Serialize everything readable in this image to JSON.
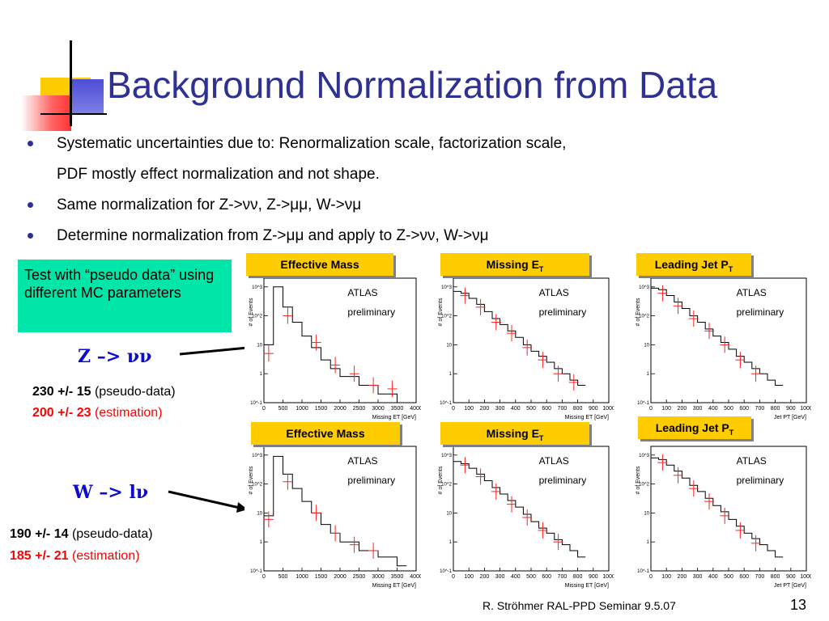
{
  "title": "Background Normalization from Data",
  "bullets": [
    {
      "line1": "Systematic uncertainties due to: Renormalization scale, factorization scale,",
      "line2": "PDF mostly effect normalization and not shape."
    },
    {
      "line1": "Same normalization for Z->νν, Z->μμ, W->νμ"
    },
    {
      "line1": "Determine normalization from Z->μμ and apply to Z->νν, W->νμ"
    }
  ],
  "callout": "Test with “pseudo data” using different MC parameters",
  "z_label": "Z –> νν",
  "w_label": "W –> lν",
  "z_results": {
    "pseudo_value": "230 +/- 15",
    "pseudo_text": " (pseudo-data)",
    "est_value": "200 +/- 23",
    "est_text": " (estimation)"
  },
  "w_results": {
    "pseudo_value": "190 +/- 14",
    "pseudo_text": " (pseudo-data)",
    "est_value": "185 +/- 21",
    "est_text": " (estimation)"
  },
  "plot_labels": {
    "mass": "Effective Mass",
    "met_main": "Missing E",
    "met_sub": "T",
    "jet_main": "Leading Jet P",
    "jet_sub": "T"
  },
  "footer": "R. Ströhmer   RAL-PPD Seminar 9.5.07",
  "page_number": "13",
  "colors": {
    "title": "#2e3192",
    "callout": "#00e6a8",
    "label_bg": "#ffcc00",
    "result_red": "#ff0000",
    "process_blue": "#0b0bd4"
  },
  "chart_data": [
    {
      "type": "line",
      "row": "Z->vv",
      "ylabel": "# of Events",
      "xlabel": "Missing ET [GeV]",
      "annotation": [
        "ATLAS",
        "preliminary"
      ],
      "log_y": true,
      "xlim": [
        0,
        4000
      ],
      "ylim": [
        0.1,
        2000
      ],
      "xticks": [
        "0",
        "500",
        "1000",
        "1500",
        "2000",
        "2500",
        "3000",
        "3500",
        "4000"
      ],
      "yticks": [
        "10^-1",
        "1",
        "10",
        "10^2",
        "10^3"
      ],
      "series": [
        {
          "x": [
            0,
            250,
            500,
            750,
            1000,
            1250,
            1500,
            1750,
            2000,
            2500,
            3000,
            3500
          ],
          "values": [
            10,
            1000,
            200,
            60,
            20,
            8,
            3,
            1.5,
            0.8,
            0.4,
            0.2,
            0.1
          ]
        },
        {
          "x": [
            125,
            625,
            1375,
            1875,
            2375,
            2875,
            3375
          ],
          "values": [
            5,
            100,
            12,
            2,
            1,
            0.4,
            0.3
          ]
        }
      ]
    },
    {
      "type": "line",
      "row": "Z->vv",
      "ylabel": "# of Events",
      "xlabel": "Missing ET [GeV]",
      "annotation": [
        "ATLAS",
        "preliminary"
      ],
      "log_y": true,
      "xlim": [
        0,
        1000
      ],
      "ylim": [
        0.1,
        2000
      ],
      "xticks": [
        "0",
        "100",
        "200",
        "300",
        "400",
        "500",
        "600",
        "700",
        "800",
        "900",
        "1000"
      ],
      "yticks": [
        "10^-1",
        "1",
        "10",
        "10^2",
        "10^3"
      ],
      "series": [
        {
          "x": [
            0,
            50,
            100,
            150,
            200,
            250,
            300,
            350,
            400,
            450,
            500,
            550,
            600,
            650,
            700,
            750,
            800
          ],
          "values": [
            700,
            600,
            400,
            250,
            140,
            80,
            50,
            30,
            18,
            10,
            6,
            4,
            2.5,
            1.5,
            1,
            0.6,
            0.4
          ]
        },
        {
          "x": [
            75,
            175,
            275,
            375,
            475,
            575,
            675,
            775
          ],
          "values": [
            500,
            200,
            60,
            25,
            8,
            3,
            1,
            0.5
          ]
        }
      ]
    },
    {
      "type": "line",
      "row": "Z->vv",
      "ylabel": "# of Events",
      "xlabel": "Jet PT [GeV]",
      "annotation": [
        "ATLAS",
        "preliminary"
      ],
      "log_y": true,
      "xlim": [
        0,
        1000
      ],
      "ylim": [
        0.1,
        2000
      ],
      "xticks": [
        "0",
        "100",
        "200",
        "300",
        "400",
        "500",
        "600",
        "700",
        "800",
        "900",
        "1000"
      ],
      "yticks": [
        "10^-1",
        "1",
        "10",
        "10^2",
        "10^3"
      ],
      "series": [
        {
          "x": [
            0,
            50,
            100,
            150,
            200,
            250,
            300,
            350,
            400,
            450,
            500,
            550,
            600,
            650,
            700,
            750,
            800
          ],
          "values": [
            900,
            800,
            500,
            300,
            180,
            100,
            60,
            35,
            20,
            12,
            7,
            4,
            2.5,
            1.5,
            1,
            0.6,
            0.4
          ]
        },
        {
          "x": [
            75,
            175,
            275,
            375,
            475,
            575,
            675
          ],
          "values": [
            600,
            220,
            80,
            30,
            10,
            3,
            1
          ]
        }
      ]
    },
    {
      "type": "line",
      "row": "W->lv",
      "ylabel": "# of Events",
      "xlabel": "Missing ET [GeV]",
      "annotation": [
        "ATLAS",
        "preliminary"
      ],
      "log_y": true,
      "xlim": [
        0,
        4000
      ],
      "ylim": [
        0.1,
        2000
      ],
      "xticks": [
        "0",
        "500",
        "1000",
        "1500",
        "2000",
        "2500",
        "3000",
        "3500",
        "4000"
      ],
      "yticks": [
        "10^-1",
        "1",
        "10",
        "10^2",
        "10^3"
      ],
      "series": [
        {
          "x": [
            0,
            250,
            500,
            750,
            1000,
            1250,
            1500,
            1750,
            2000,
            2500,
            3000,
            3500
          ],
          "values": [
            8,
            900,
            220,
            70,
            25,
            10,
            4,
            2,
            1,
            0.5,
            0.3,
            0.15
          ]
        },
        {
          "x": [
            125,
            625,
            1375,
            1875,
            2375,
            2875
          ],
          "values": [
            6,
            120,
            10,
            2,
            0.8,
            0.5
          ]
        }
      ]
    },
    {
      "type": "line",
      "row": "W->lv",
      "ylabel": "# of Events",
      "xlabel": "Missing ET [GeV]",
      "annotation": [
        "ATLAS",
        "preliminary"
      ],
      "log_y": true,
      "xlim": [
        0,
        1000
      ],
      "ylim": [
        0.1,
        2000
      ],
      "xticks": [
        "0",
        "100",
        "200",
        "300",
        "400",
        "500",
        "600",
        "700",
        "800",
        "900",
        "1000"
      ],
      "yticks": [
        "10^-1",
        "1",
        "10",
        "10^2",
        "10^3"
      ],
      "series": [
        {
          "x": [
            0,
            50,
            100,
            150,
            200,
            250,
            300,
            350,
            400,
            450,
            500,
            550,
            600,
            650,
            700,
            750,
            800
          ],
          "values": [
            600,
            500,
            350,
            220,
            130,
            75,
            45,
            27,
            16,
            9,
            5,
            3,
            2,
            1.2,
            0.8,
            0.5,
            0.3
          ]
        },
        {
          "x": [
            75,
            175,
            275,
            375,
            475,
            575,
            675
          ],
          "values": [
            450,
            180,
            55,
            20,
            7,
            2.5,
            1
          ]
        }
      ]
    },
    {
      "type": "line",
      "row": "W->lv",
      "ylabel": "# of Events",
      "xlabel": "Jet PT [GeV]",
      "annotation": [
        "ATLAS",
        "preliminary"
      ],
      "log_y": true,
      "xlim": [
        0,
        1000
      ],
      "ylim": [
        0.1,
        2000
      ],
      "xticks": [
        "0",
        "100",
        "200",
        "300",
        "400",
        "500",
        "600",
        "700",
        "800",
        "900",
        "1000"
      ],
      "yticks": [
        "10^-1",
        "1",
        "10",
        "10^2",
        "10^3"
      ],
      "series": [
        {
          "x": [
            0,
            50,
            100,
            150,
            200,
            250,
            300,
            350,
            400,
            450,
            500,
            550,
            600,
            650,
            700,
            750,
            800
          ],
          "values": [
            800,
            700,
            450,
            280,
            160,
            90,
            55,
            32,
            18,
            11,
            6,
            3.5,
            2,
            1.3,
            0.8,
            0.5,
            0.3
          ]
        },
        {
          "x": [
            75,
            175,
            275,
            375,
            475,
            575,
            675
          ],
          "values": [
            550,
            200,
            70,
            25,
            8,
            2.5,
            0.9
          ]
        }
      ]
    }
  ]
}
